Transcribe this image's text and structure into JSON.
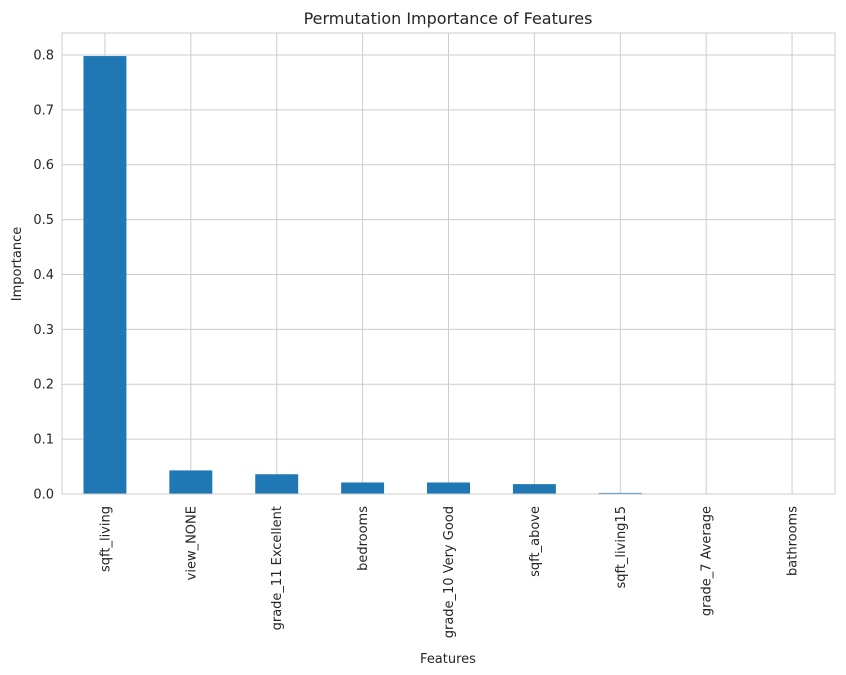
{
  "chart_data": {
    "type": "bar",
    "title": "Permutation Importance of Features",
    "xlabel": "Features",
    "ylabel": "Importance",
    "categories": [
      "sqft_living",
      "view_NONE",
      "grade_11 Excellent",
      "bedrooms",
      "grade_10 Very Good",
      "sqft_above",
      "sqft_living15",
      "grade_7 Average",
      "bathrooms"
    ],
    "values": [
      0.798,
      0.043,
      0.036,
      0.021,
      0.021,
      0.018,
      0.002,
      0.0,
      0.0
    ],
    "ylim": [
      0,
      0.84
    ],
    "yticks": [
      0.0,
      0.1,
      0.2,
      0.3,
      0.4,
      0.5,
      0.6,
      0.7,
      0.8
    ],
    "grid": true,
    "bar_color": "#1f77b4",
    "grid_color": "#cccccc"
  }
}
